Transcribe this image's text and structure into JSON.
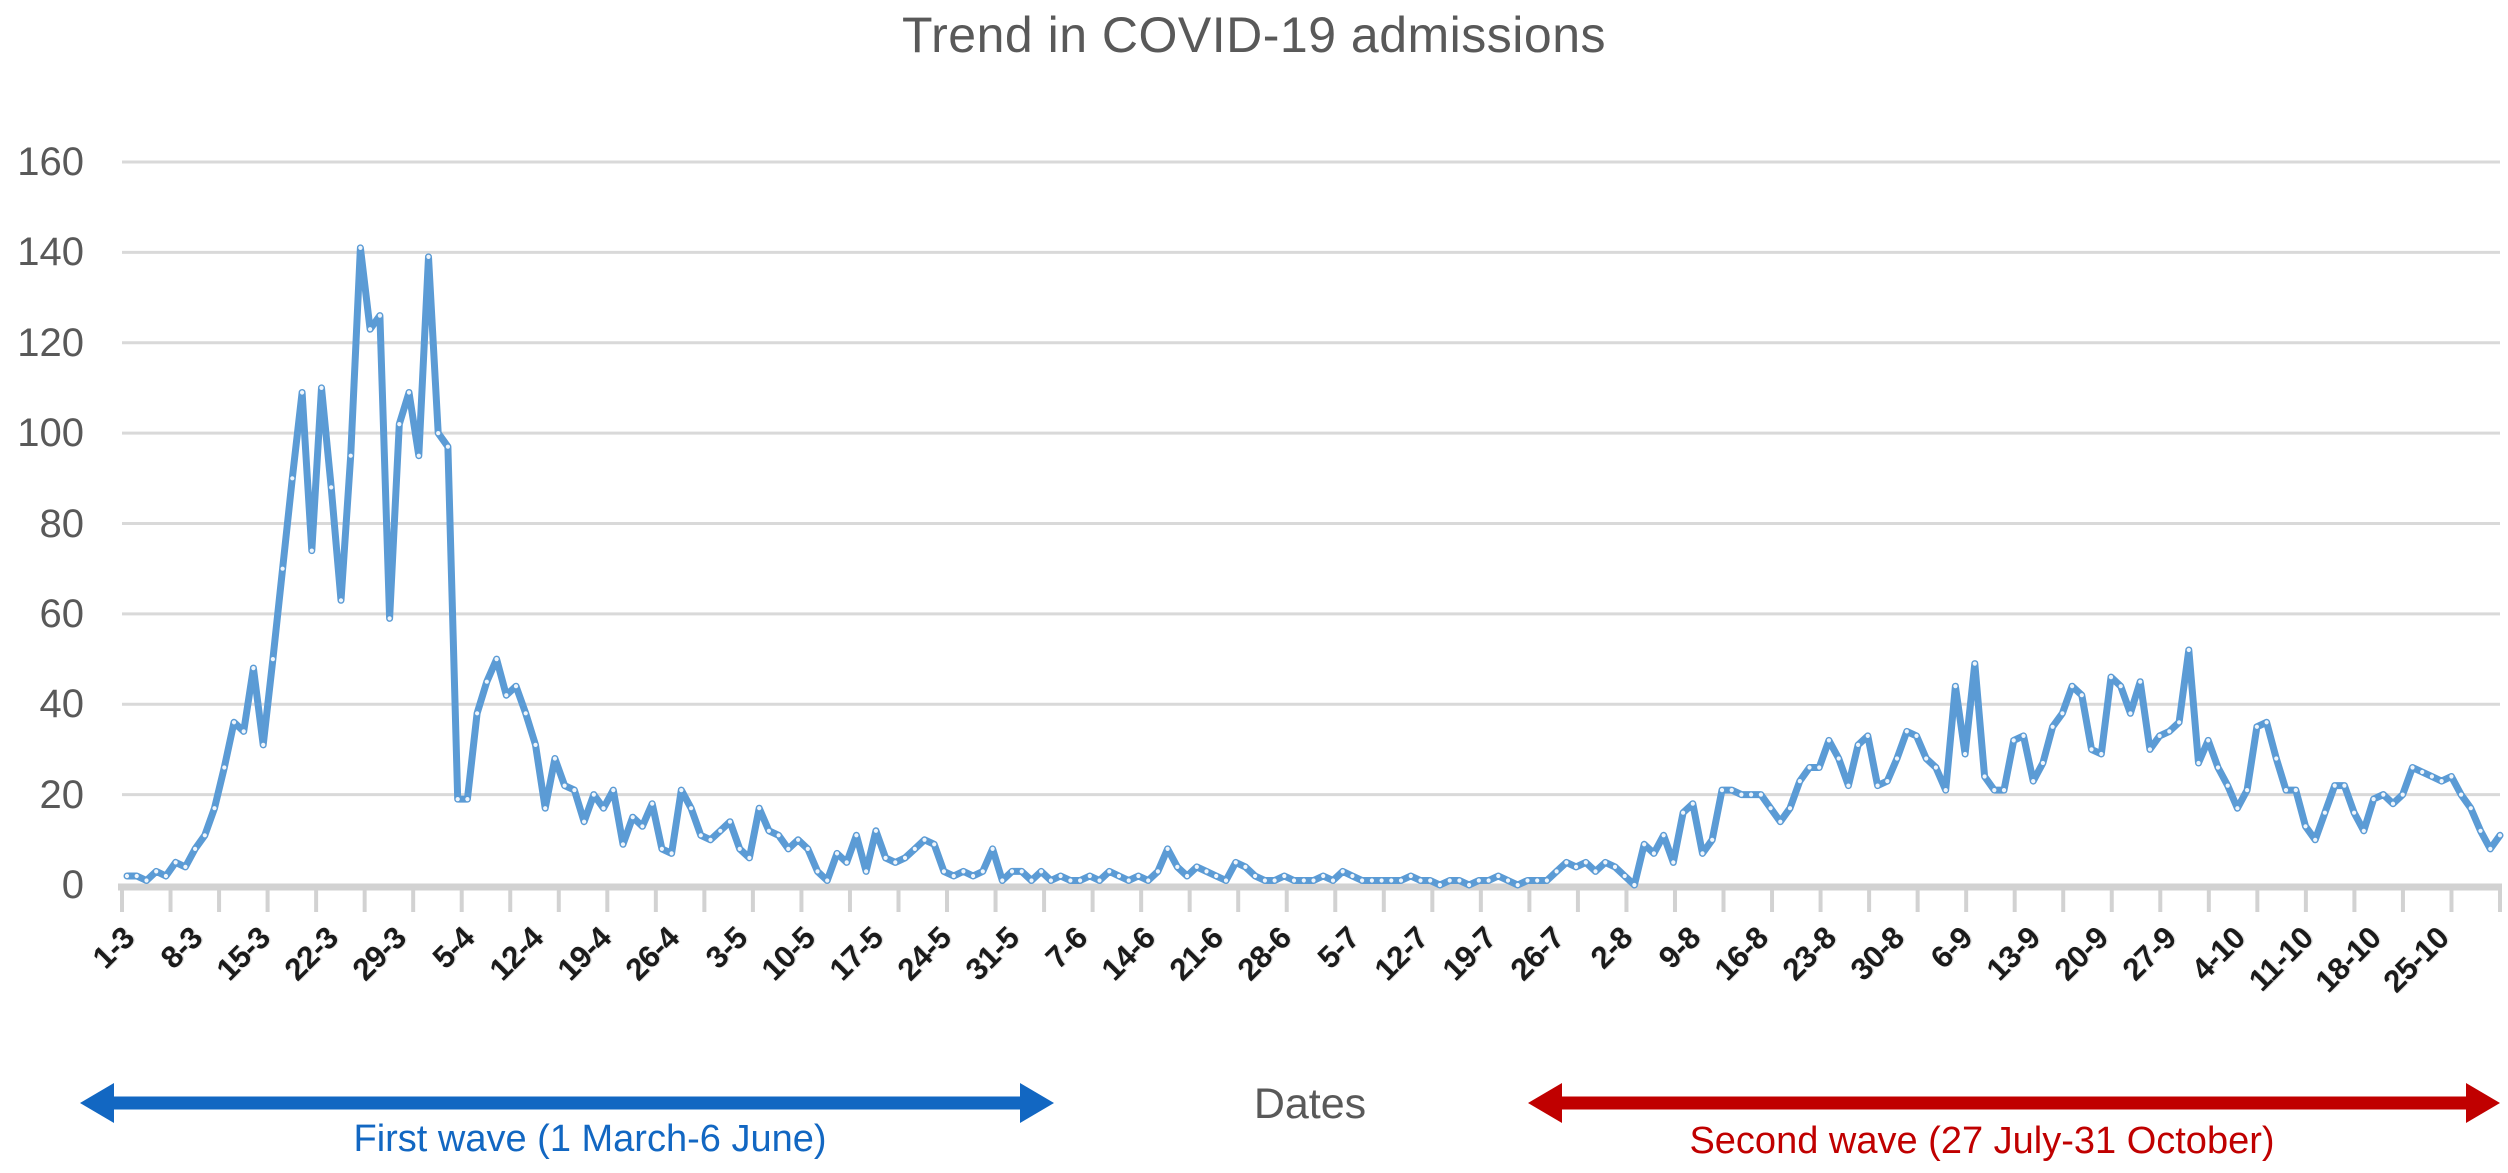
{
  "title": "Trend in COVID-19 admissions",
  "annotations": {
    "first_wave": {
      "label": "First wave (1 March-6 June)",
      "color": "#1267C2"
    },
    "second_wave": {
      "label": "Second wave (27 July-31 October)",
      "color": "#C00000"
    }
  },
  "colors": {
    "line": "#5B9BD5",
    "grid": "#D9D9D9",
    "axis": "#D2D2D2",
    "text_gray": "#595959",
    "x_label_color": "#1b1b1b",
    "first_wave_accent": "#1267C2",
    "second_wave_accent": "#C00000"
  },
  "chart_data": {
    "type": "line",
    "title": "Trend in COVID-19 admissions",
    "xlabel": "Dates",
    "ylabel": "",
    "ylim": [
      0,
      160
    ],
    "y_ticks": [
      0,
      20,
      40,
      60,
      80,
      100,
      120,
      140,
      160
    ],
    "grid": true,
    "legend": "none",
    "frequency": "daily",
    "x_start": "1-3",
    "x_end": "31-10",
    "x_tick_labels": [
      "1-3",
      "8-3",
      "15-3",
      "22-3",
      "29-3",
      "5-4",
      "12-4",
      "19-4",
      "26-4",
      "3-5",
      "10-5",
      "17-5",
      "24-5",
      "31-5",
      "7-6",
      "14-6",
      "21-6",
      "28-6",
      "5-7",
      "12-7",
      "19-7",
      "26-7",
      "2-8",
      "9-8",
      "16-8",
      "23-8",
      "30-8",
      "6-9",
      "13-9",
      "20-9",
      "27-9",
      "4-10",
      "11-10",
      "18-10",
      "25-10"
    ],
    "series": [
      {
        "name": "COVID-19 admissions",
        "color": "#5B9BD5",
        "values": [
          2,
          2,
          1,
          3,
          2,
          5,
          4,
          8,
          11,
          17,
          26,
          36,
          34,
          48,
          31,
          50,
          70,
          90,
          109,
          74,
          110,
          88,
          63,
          95,
          141,
          123,
          126,
          59,
          102,
          109,
          95,
          139,
          100,
          97,
          19,
          19,
          38,
          45,
          50,
          42,
          44,
          38,
          31,
          17,
          28,
          22,
          21,
          14,
          20,
          17,
          21,
          9,
          15,
          13,
          18,
          8,
          7,
          21,
          17,
          11,
          10,
          12,
          14,
          8,
          6,
          17,
          12,
          11,
          8,
          10,
          8,
          3,
          1,
          7,
          5,
          11,
          3,
          12,
          6,
          5,
          6,
          8,
          10,
          9,
          3,
          2,
          3,
          2,
          3,
          8,
          1,
          3,
          3,
          1,
          3,
          1,
          2,
          1,
          1,
          2,
          1,
          3,
          2,
          1,
          2,
          1,
          3,
          8,
          4,
          2,
          4,
          3,
          2,
          1,
          5,
          4,
          2,
          1,
          1,
          2,
          1,
          1,
          1,
          2,
          1,
          3,
          2,
          1,
          1,
          1,
          1,
          1,
          2,
          1,
          1,
          0,
          1,
          1,
          0,
          1,
          1,
          2,
          1,
          0,
          1,
          1,
          1,
          3,
          5,
          4,
          5,
          3,
          5,
          4,
          2,
          0,
          9,
          7,
          11,
          5,
          16,
          18,
          7,
          10,
          21,
          21,
          20,
          20,
          20,
          17,
          14,
          17,
          23,
          26,
          26,
          32,
          28,
          22,
          31,
          33,
          22,
          23,
          28,
          34,
          33,
          28,
          26,
          21,
          44,
          29,
          49,
          24,
          21,
          21,
          32,
          33,
          23,
          27,
          35,
          38,
          44,
          42,
          30,
          29,
          46,
          44,
          38,
          45,
          30,
          33,
          34,
          36,
          52,
          27,
          32,
          26,
          22,
          17,
          21,
          35,
          36,
          28,
          21,
          21,
          13,
          10,
          16,
          22,
          22,
          16,
          12,
          19,
          20,
          18,
          20,
          26,
          25,
          24,
          23,
          24,
          20,
          17,
          12,
          8,
          11
        ]
      }
    ]
  }
}
